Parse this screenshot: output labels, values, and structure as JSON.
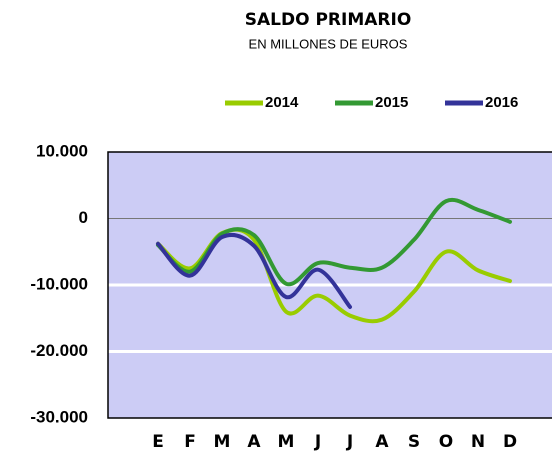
{
  "chart_data": {
    "type": "line",
    "title": "SALDO PRIMARIO",
    "subtitle": "EN MILLONES DE EUROS",
    "categories": [
      "E",
      "F",
      "M",
      "A",
      "M",
      "J",
      "J",
      "A",
      "S",
      "O",
      "N",
      "D"
    ],
    "series": [
      {
        "name": "2014",
        "color": "#99cc00",
        "values": [
          -3800,
          -7500,
          -2200,
          -3200,
          -14000,
          -11600,
          -14600,
          -15200,
          -11000,
          -5000,
          -7800,
          -9400
        ]
      },
      {
        "name": "2015",
        "color": "#339933",
        "values": [
          -4000,
          -8000,
          -2300,
          -2500,
          -9800,
          -6700,
          -7400,
          -7400,
          -3200,
          2600,
          1300,
          -500
        ]
      },
      {
        "name": "2016",
        "color": "#333399",
        "values": [
          -3800,
          -8600,
          -2800,
          -4100,
          -11800,
          -7700,
          -13300,
          null,
          null,
          null,
          null,
          null
        ]
      }
    ],
    "ylim": [
      -30000,
      10000
    ],
    "yticks": [
      {
        "value": -30000,
        "label": "-30.000"
      },
      {
        "value": -20000,
        "label": "-20.000"
      },
      {
        "value": -10000,
        "label": "-10.000"
      },
      0,
      {
        "value": 10000,
        "label": "10.000"
      }
    ],
    "grid": true,
    "legend": "top"
  }
}
